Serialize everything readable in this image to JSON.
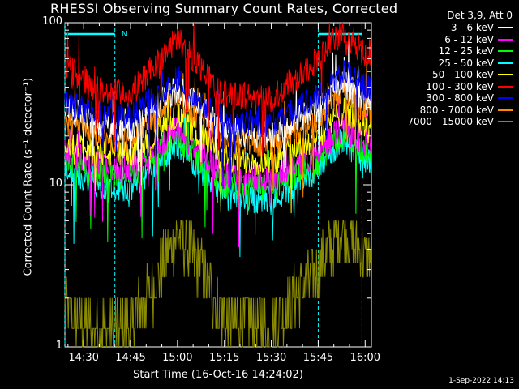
{
  "chart_data": {
    "type": "line",
    "title": "RHESSI Observing Summary Count Rates, Corrected",
    "xlabel": "Start Time (16-Oct-16 14:24:02)",
    "ylabel": "Corrected Count Rate (s⁻¹ detector⁻¹)",
    "yscale": "log",
    "ylim": [
      1,
      100
    ],
    "xlim": [
      "14:24",
      "16:02"
    ],
    "x_ticks": [
      "14:30",
      "14:45",
      "15:00",
      "15:15",
      "15:30",
      "15:45",
      "16:00"
    ],
    "y_ticks": [
      "1",
      "10",
      "100"
    ],
    "legend_title": "Det 3,9, Att 0",
    "legend_position": "right",
    "grid": false,
    "night_flag_label": "N",
    "night_intervals": [
      [
        "14:24",
        "14:40"
      ],
      [
        "15:45",
        "15:59"
      ]
    ],
    "timestamp": "1-Sep-2022 14:13",
    "series": [
      {
        "name": "3 - 6 keV",
        "color": "#ffffff",
        "points": [
          [
            "14:24",
            30
          ],
          [
            "14:35",
            24
          ],
          [
            "14:45",
            22
          ],
          [
            "15:00",
            40
          ],
          [
            "15:15",
            22
          ],
          [
            "15:30",
            20
          ],
          [
            "15:45",
            30
          ],
          [
            "15:53",
            42
          ],
          [
            "16:00",
            35
          ]
        ]
      },
      {
        "name": "6 - 12 keV",
        "color": "#ff00ff",
        "points": [
          [
            "14:24",
            16
          ],
          [
            "14:35",
            13
          ],
          [
            "14:45",
            12.5
          ],
          [
            "15:00",
            22
          ],
          [
            "15:15",
            11.5
          ],
          [
            "15:30",
            11
          ],
          [
            "15:45",
            16
          ],
          [
            "15:53",
            23
          ],
          [
            "16:00",
            18
          ]
        ]
      },
      {
        "name": "12 - 25 keV",
        "color": "#00ff00",
        "points": [
          [
            "14:24",
            14
          ],
          [
            "14:35",
            11.5
          ],
          [
            "14:45",
            11
          ],
          [
            "15:00",
            20
          ],
          [
            "15:15",
            10
          ],
          [
            "15:30",
            9.5
          ],
          [
            "15:45",
            14
          ],
          [
            "15:53",
            21
          ],
          [
            "16:00",
            16
          ]
        ]
      },
      {
        "name": "25 - 50 keV",
        "color": "#00ffff",
        "points": [
          [
            "14:24",
            12.5
          ],
          [
            "14:35",
            10
          ],
          [
            "14:45",
            9.5
          ],
          [
            "15:00",
            18
          ],
          [
            "15:15",
            8.5
          ],
          [
            "15:30",
            8
          ],
          [
            "15:45",
            12.5
          ],
          [
            "15:53",
            19
          ],
          [
            "16:00",
            14
          ]
        ]
      },
      {
        "name": "50 - 100 keV",
        "color": "#ffff00",
        "points": [
          [
            "14:24",
            19
          ],
          [
            "14:35",
            16
          ],
          [
            "14:45",
            15
          ],
          [
            "15:00",
            27
          ],
          [
            "15:15",
            14.5
          ],
          [
            "15:30",
            14
          ],
          [
            "15:45",
            20
          ],
          [
            "15:53",
            29
          ],
          [
            "16:00",
            23
          ]
        ]
      },
      {
        "name": "100 - 300 keV",
        "color": "#ff0000",
        "points": [
          [
            "14:24",
            55
          ],
          [
            "14:35",
            38
          ],
          [
            "14:45",
            36
          ],
          [
            "15:00",
            80
          ],
          [
            "15:15",
            36
          ],
          [
            "15:30",
            34
          ],
          [
            "15:45",
            60
          ],
          [
            "15:53",
            88
          ],
          [
            "16:00",
            65
          ]
        ]
      },
      {
        "name": "300 - 800 keV",
        "color": "#0000ff",
        "points": [
          [
            "14:24",
            32
          ],
          [
            "14:35",
            27
          ],
          [
            "14:45",
            26
          ],
          [
            "15:00",
            45
          ],
          [
            "15:15",
            25
          ],
          [
            "15:30",
            24
          ],
          [
            "15:45",
            35
          ],
          [
            "15:53",
            50
          ],
          [
            "16:00",
            40
          ]
        ]
      },
      {
        "name": "800 - 7000 keV",
        "color": "#ff8800",
        "points": [
          [
            "14:24",
            24
          ],
          [
            "14:35",
            20
          ],
          [
            "14:45",
            19
          ],
          [
            "15:00",
            35
          ],
          [
            "15:15",
            18.5
          ],
          [
            "15:30",
            18
          ],
          [
            "15:45",
            26
          ],
          [
            "15:53",
            38
          ],
          [
            "16:00",
            29
          ]
        ]
      },
      {
        "name": "7000 - 15000 keV",
        "color": "#8b8b00",
        "points": [
          [
            "14:24",
            1.6
          ],
          [
            "14:35",
            1.3
          ],
          [
            "14:45",
            1.3
          ],
          [
            "15:00",
            5
          ],
          [
            "15:08",
            3
          ],
          [
            "15:15",
            1.5
          ],
          [
            "15:30",
            1.4
          ],
          [
            "15:45",
            3
          ],
          [
            "15:53",
            5.5
          ],
          [
            "16:00",
            3.5
          ]
        ]
      }
    ]
  }
}
